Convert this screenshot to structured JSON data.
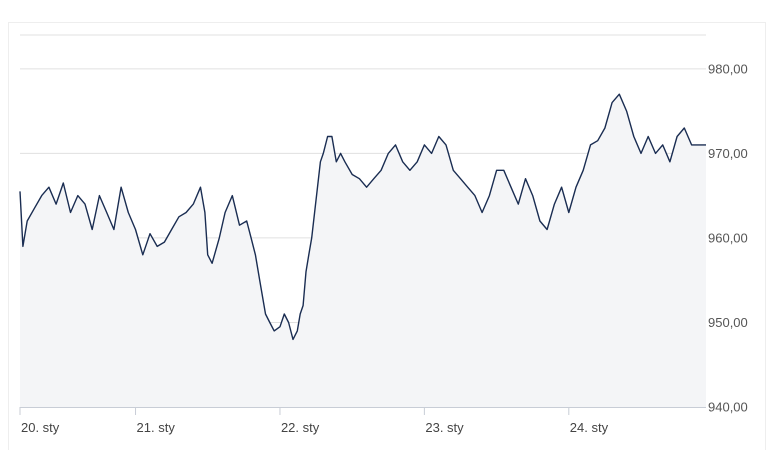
{
  "chart_data": {
    "type": "area",
    "title": "",
    "xlabel": "",
    "ylabel": "",
    "ylim": [
      940,
      984
    ],
    "grid": true,
    "y_ticks": [
      "940,00",
      "950,00",
      "960,00",
      "970,00",
      "980,00"
    ],
    "y_tick_values": [
      940,
      950,
      960,
      970,
      980
    ],
    "x_ticks": [
      "20. sty",
      "21. sty",
      "22. sty",
      "23. sty",
      "24. sty"
    ],
    "x_tick_values": [
      0,
      0.8,
      1.8,
      2.8,
      3.8
    ],
    "x_range": [
      0,
      4.75
    ],
    "colors": {
      "line": "#1a2d52",
      "fill": "#f4f5f7",
      "grid": "#e0e0e0"
    },
    "series": [
      {
        "values": [
          [
            0.0,
            965.5
          ],
          [
            0.02,
            959
          ],
          [
            0.05,
            962
          ],
          [
            0.1,
            963.5
          ],
          [
            0.15,
            965
          ],
          [
            0.2,
            966
          ],
          [
            0.25,
            964
          ],
          [
            0.3,
            966.5
          ],
          [
            0.35,
            963
          ],
          [
            0.4,
            965
          ],
          [
            0.45,
            964
          ],
          [
            0.5,
            961
          ],
          [
            0.55,
            965
          ],
          [
            0.6,
            963
          ],
          [
            0.65,
            961
          ],
          [
            0.7,
            966
          ],
          [
            0.75,
            963
          ],
          [
            0.8,
            961
          ],
          [
            0.85,
            958
          ],
          [
            0.9,
            960.5
          ],
          [
            0.95,
            959
          ],
          [
            1.0,
            959.5
          ],
          [
            1.05,
            961
          ],
          [
            1.1,
            962.5
          ],
          [
            1.15,
            963
          ],
          [
            1.2,
            964
          ],
          [
            1.25,
            966
          ],
          [
            1.28,
            963
          ],
          [
            1.3,
            958
          ],
          [
            1.33,
            957
          ],
          [
            1.38,
            960
          ],
          [
            1.42,
            963
          ],
          [
            1.47,
            965
          ],
          [
            1.52,
            961.5
          ],
          [
            1.57,
            962
          ],
          [
            1.6,
            960
          ],
          [
            1.63,
            958
          ],
          [
            1.66,
            955
          ],
          [
            1.7,
            951
          ],
          [
            1.73,
            950
          ],
          [
            1.76,
            949
          ],
          [
            1.8,
            949.5
          ],
          [
            1.83,
            951
          ],
          [
            1.86,
            950
          ],
          [
            1.89,
            948
          ],
          [
            1.92,
            949
          ],
          [
            1.94,
            951
          ],
          [
            1.96,
            952
          ],
          [
            1.98,
            956
          ],
          [
            2.0,
            958
          ],
          [
            2.02,
            960
          ],
          [
            2.04,
            963
          ],
          [
            2.06,
            966
          ],
          [
            2.08,
            969
          ],
          [
            2.1,
            970
          ],
          [
            2.13,
            972
          ],
          [
            2.16,
            972
          ],
          [
            2.19,
            969
          ],
          [
            2.22,
            970
          ],
          [
            2.25,
            969
          ],
          [
            2.3,
            967.5
          ],
          [
            2.35,
            967
          ],
          [
            2.4,
            966
          ],
          [
            2.45,
            967
          ],
          [
            2.5,
            968
          ],
          [
            2.55,
            970
          ],
          [
            2.6,
            971
          ],
          [
            2.65,
            969
          ],
          [
            2.7,
            968
          ],
          [
            2.75,
            969
          ],
          [
            2.8,
            971
          ],
          [
            2.85,
            970
          ],
          [
            2.9,
            972
          ],
          [
            2.95,
            971
          ],
          [
            3.0,
            968
          ],
          [
            3.05,
            967
          ],
          [
            3.1,
            966
          ],
          [
            3.15,
            965
          ],
          [
            3.2,
            963
          ],
          [
            3.25,
            965
          ],
          [
            3.3,
            968
          ],
          [
            3.35,
            968
          ],
          [
            3.4,
            966
          ],
          [
            3.45,
            964
          ],
          [
            3.5,
            967
          ],
          [
            3.55,
            965
          ],
          [
            3.6,
            962
          ],
          [
            3.65,
            961
          ],
          [
            3.7,
            964
          ],
          [
            3.75,
            966
          ],
          [
            3.8,
            963
          ],
          [
            3.85,
            966
          ],
          [
            3.9,
            968
          ],
          [
            3.95,
            971
          ],
          [
            4.0,
            971.5
          ],
          [
            4.05,
            973
          ],
          [
            4.1,
            976
          ],
          [
            4.15,
            977
          ],
          [
            4.2,
            975
          ],
          [
            4.25,
            972
          ],
          [
            4.3,
            970
          ],
          [
            4.35,
            972
          ],
          [
            4.4,
            970
          ],
          [
            4.45,
            971
          ],
          [
            4.5,
            969
          ],
          [
            4.55,
            972
          ],
          [
            4.6,
            973
          ],
          [
            4.65,
            971
          ],
          [
            4.7,
            971
          ],
          [
            4.75,
            971
          ]
        ]
      }
    ]
  }
}
